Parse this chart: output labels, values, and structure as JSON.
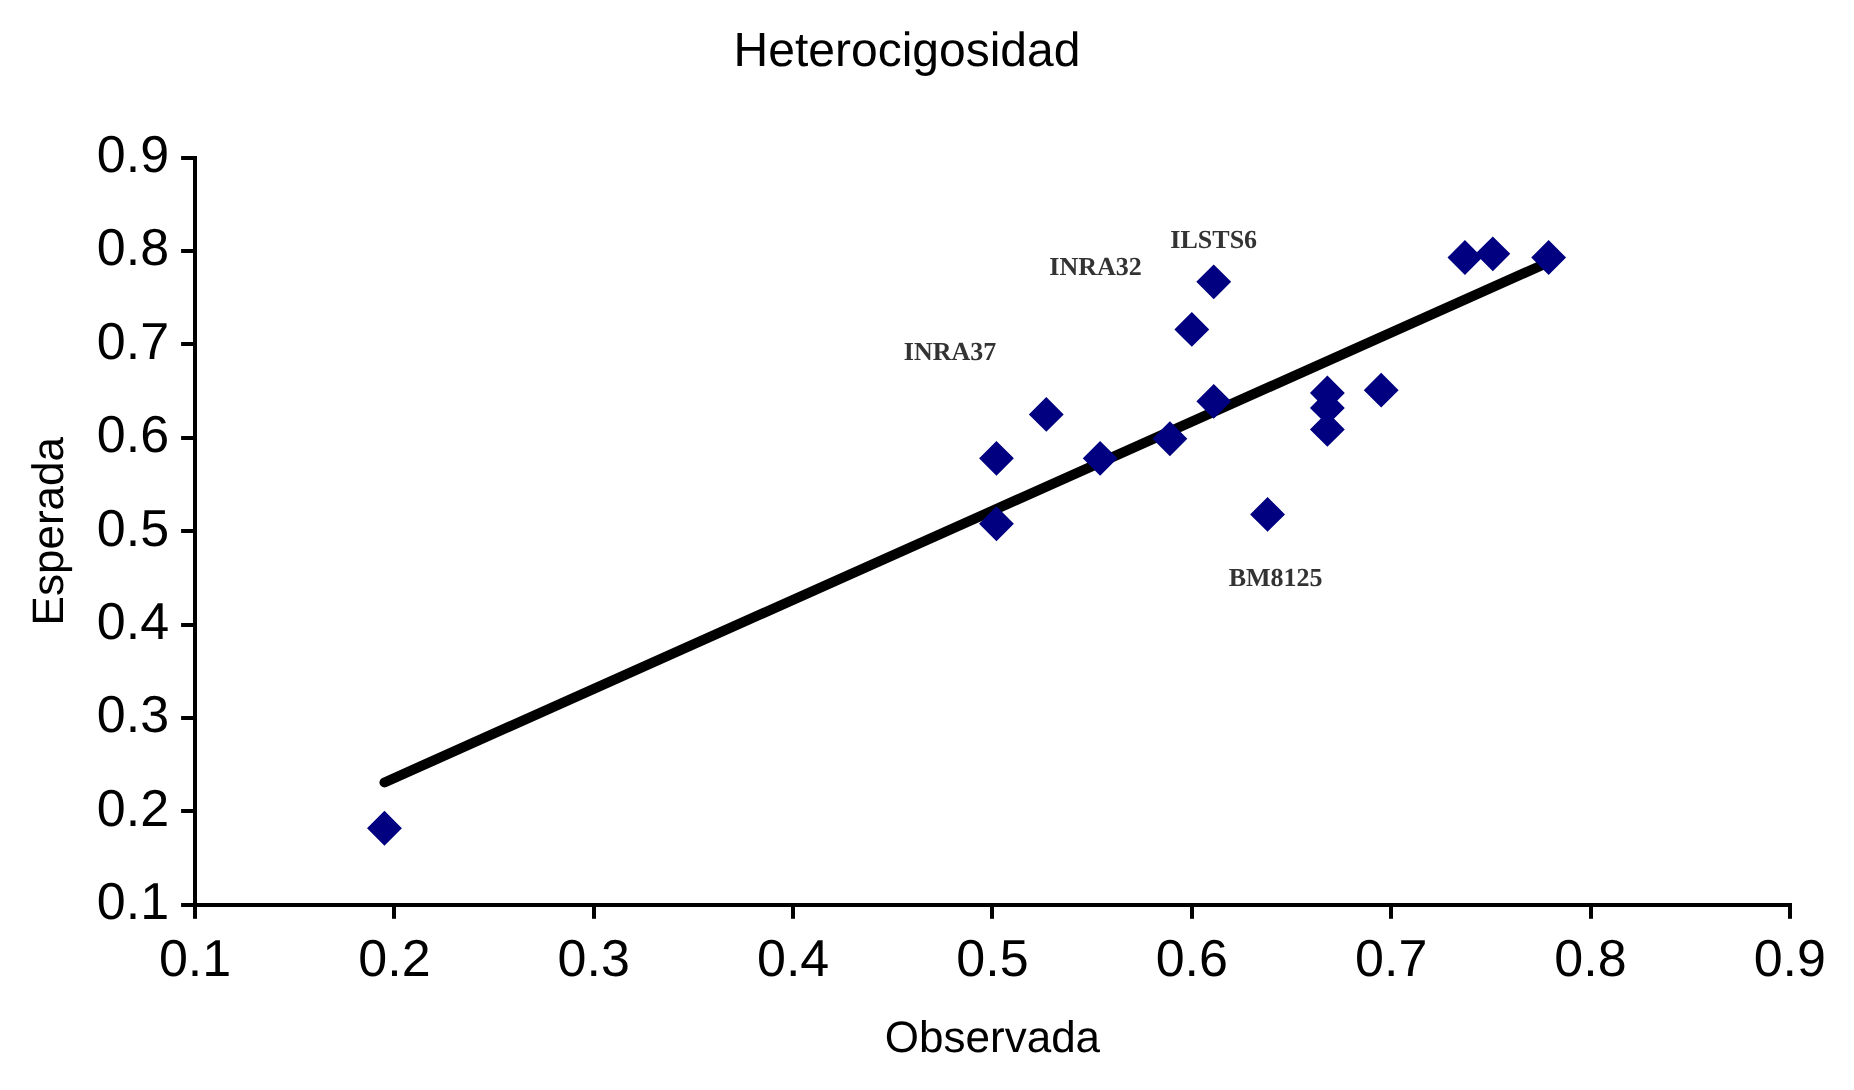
{
  "chart_data": {
    "type": "scatter",
    "title": "Heterocigosidad",
    "xlabel": "Observada",
    "ylabel": "Esperada",
    "xlim": [
      0.1,
      0.9
    ],
    "xticks": [
      0.1,
      0.2,
      0.3,
      0.4,
      0.5,
      0.6,
      0.7,
      0.8,
      0.9
    ],
    "ylim": [
      0.1,
      0.9
    ],
    "yticks": [
      0.1,
      0.2,
      0.3,
      0.4,
      0.5,
      0.6,
      0.7,
      0.8,
      0.9
    ],
    "legend": false,
    "series": [
      {
        "marker": "diamond",
        "color": "#000080",
        "x": [
          0.195,
          0.502,
          0.502,
          0.527,
          0.554,
          0.589,
          0.6,
          0.611,
          0.611,
          0.638,
          0.668,
          0.668,
          0.668,
          0.695,
          0.737,
          0.751,
          0.779
        ],
        "values": [
          0.182,
          0.578,
          0.508,
          0.625,
          0.578,
          0.599,
          0.716,
          0.767,
          0.639,
          0.518,
          0.648,
          0.632,
          0.609,
          0.651,
          0.793,
          0.797,
          0.793
        ]
      },
      {
        "type": "line",
        "marker": "none",
        "color": "#000000",
        "x": [
          0.195,
          0.779
        ],
        "values": [
          0.231,
          0.788
        ]
      }
    ],
    "annotations": [
      {
        "text": "ILSTS6",
        "x": 0.611,
        "y": 0.767
      },
      {
        "text": "INRA32",
        "x": 0.6,
        "y": 0.716
      },
      {
        "text": "INRA37",
        "x": 0.527,
        "y": 0.625
      },
      {
        "text": "BM8125",
        "x": 0.638,
        "y": 0.518
      }
    ]
  }
}
